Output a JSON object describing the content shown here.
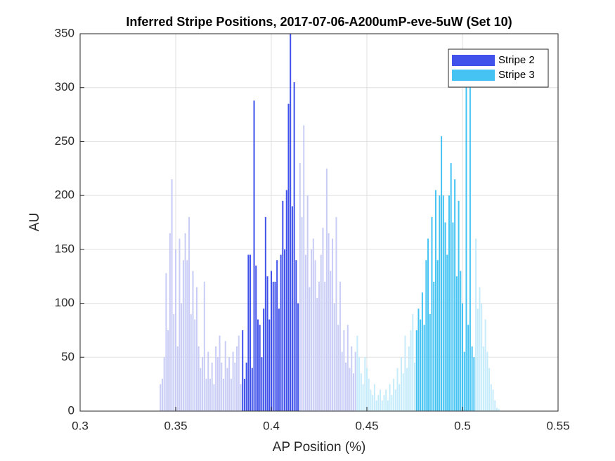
{
  "chart_data": {
    "type": "bar",
    "title": "Inferred Stripe Positions, 2017-07-06-A200umP-eve-5uW (Set 10)",
    "x_label": "AP Position (%)",
    "y_label": "AU",
    "xlim": [
      0.3,
      0.55
    ],
    "xticks": [
      0.3,
      0.35,
      0.4,
      0.45,
      0.5,
      0.55
    ],
    "ylim": [
      0,
      350
    ],
    "yticks": [
      0,
      50,
      100,
      150,
      200,
      250,
      300,
      350
    ],
    "grid": true,
    "legend": "northeast",
    "series": [
      {
        "color": "#c9cdf6",
        "x": [
          0.342,
          0.343,
          0.344,
          0.345,
          0.346,
          0.347,
          0.348,
          0.349,
          0.35,
          0.351,
          0.352,
          0.353,
          0.354,
          0.355,
          0.356,
          0.357,
          0.358,
          0.359,
          0.36,
          0.361,
          0.362,
          0.363,
          0.364,
          0.365,
          0.366,
          0.367,
          0.368,
          0.369,
          0.37,
          0.371,
          0.372,
          0.373,
          0.374,
          0.375,
          0.376,
          0.377,
          0.378,
          0.379,
          0.38,
          0.381,
          0.382,
          0.383,
          0.384,
          0.415,
          0.416,
          0.417,
          0.418,
          0.419,
          0.42,
          0.421,
          0.422,
          0.423,
          0.424,
          0.425,
          0.426,
          0.427,
          0.428,
          0.429,
          0.43,
          0.431,
          0.432,
          0.433,
          0.434,
          0.435,
          0.436,
          0.437,
          0.438,
          0.439,
          0.44,
          0.441,
          0.442,
          0.443,
          0.444
        ],
        "values": [
          25,
          30,
          50,
          128,
          75,
          165,
          215,
          90,
          150,
          60,
          160,
          100,
          140,
          165,
          140,
          180,
          90,
          130,
          85,
          115,
          60,
          40,
          50,
          120,
          30,
          55,
          30,
          45,
          25,
          60,
          50,
          70,
          45,
          30,
          65,
          40,
          50,
          30,
          55,
          45,
          60,
          70,
          25,
          230,
          180,
          265,
          145,
          200,
          115,
          150,
          160,
          140,
          105,
          120,
          145,
          170,
          120,
          225,
          165,
          130,
          160,
          100,
          180,
          80,
          120,
          55,
          75,
          45,
          80,
          40,
          60,
          35,
          55
        ]
      },
      {
        "color": "#c6ecfb",
        "x": [
          0.445,
          0.446,
          0.447,
          0.448,
          0.449,
          0.45,
          0.451,
          0.452,
          0.453,
          0.454,
          0.455,
          0.456,
          0.457,
          0.458,
          0.459,
          0.46,
          0.461,
          0.462,
          0.463,
          0.464,
          0.465,
          0.466,
          0.467,
          0.468,
          0.469,
          0.47,
          0.471,
          0.472,
          0.473,
          0.474,
          0.475,
          0.507,
          0.508,
          0.509,
          0.51,
          0.511,
          0.512,
          0.513,
          0.514,
          0.515,
          0.516,
          0.517,
          0.518,
          0.519
        ],
        "values": [
          70,
          50,
          35,
          25,
          50,
          40,
          30,
          20,
          15,
          25,
          10,
          15,
          20,
          10,
          15,
          20,
          10,
          25,
          15,
          30,
          20,
          40,
          25,
          50,
          35,
          70,
          40,
          60,
          75,
          90,
          45,
          160,
          95,
          115,
          100,
          60,
          85,
          55,
          40,
          25,
          20,
          10,
          3,
          2
        ]
      },
      {
        "name": "Stripe 2",
        "color": "#4052ea",
        "x": [
          0.385,
          0.386,
          0.387,
          0.388,
          0.389,
          0.39,
          0.391,
          0.392,
          0.393,
          0.394,
          0.395,
          0.396,
          0.397,
          0.398,
          0.399,
          0.4,
          0.401,
          0.402,
          0.403,
          0.404,
          0.405,
          0.406,
          0.407,
          0.408,
          0.409,
          0.41,
          0.411,
          0.412,
          0.413,
          0.414
        ],
        "values": [
          75,
          30,
          45,
          145,
          145,
          40,
          288,
          135,
          85,
          80,
          50,
          95,
          180,
          125,
          85,
          130,
          120,
          120,
          140,
          95,
          145,
          195,
          150,
          205,
          285,
          350,
          190,
          305,
          140,
          100
        ]
      },
      {
        "name": "Stripe 3",
        "color": "#45c4f3",
        "x": [
          0.476,
          0.477,
          0.478,
          0.479,
          0.48,
          0.481,
          0.482,
          0.483,
          0.484,
          0.485,
          0.486,
          0.487,
          0.488,
          0.489,
          0.49,
          0.491,
          0.492,
          0.493,
          0.494,
          0.495,
          0.496,
          0.497,
          0.498,
          0.499,
          0.5,
          0.501,
          0.502,
          0.503,
          0.504,
          0.505,
          0.506
        ],
        "values": [
          75,
          95,
          85,
          110,
          80,
          140,
          160,
          90,
          180,
          120,
          205,
          140,
          200,
          255,
          200,
          175,
          145,
          200,
          230,
          175,
          215,
          125,
          195,
          130,
          100,
          55,
          305,
          80,
          330,
          60,
          50
        ]
      }
    ]
  }
}
